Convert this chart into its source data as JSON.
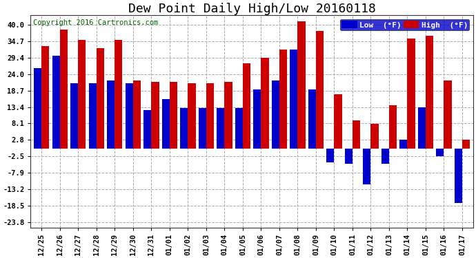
{
  "title": "Dew Point Daily High/Low 20160118",
  "copyright": "Copyright 2016 Cartronics.com",
  "legend_low": "Low  (°F)",
  "legend_high": "High  (°F)",
  "dates": [
    "12/25",
    "12/26",
    "12/27",
    "12/28",
    "12/29",
    "12/30",
    "12/31",
    "01/01",
    "01/02",
    "01/03",
    "01/04",
    "01/05",
    "01/06",
    "01/07",
    "01/08",
    "01/09",
    "01/10",
    "01/11",
    "01/12",
    "01/13",
    "01/14",
    "01/15",
    "01/16",
    "01/17"
  ],
  "low_vals": [
    26.0,
    30.0,
    21.0,
    21.0,
    22.0,
    21.0,
    12.5,
    16.0,
    13.0,
    13.0,
    13.0,
    13.0,
    19.0,
    22.0,
    32.0,
    19.0,
    -4.5,
    -5.0,
    -11.5,
    -5.0,
    2.8,
    13.4,
    -2.5,
    -17.5
  ],
  "high_vals": [
    33.0,
    38.5,
    35.0,
    32.5,
    35.0,
    22.0,
    21.5,
    21.5,
    21.0,
    21.0,
    21.5,
    27.5,
    29.4,
    32.0,
    41.0,
    38.0,
    17.5,
    9.0,
    8.0,
    14.0,
    35.5,
    36.5,
    22.0,
    2.8
  ],
  "yticks": [
    40.0,
    34.7,
    29.4,
    24.0,
    18.7,
    13.4,
    8.1,
    2.8,
    -2.5,
    -7.9,
    -13.2,
    -18.5,
    -23.8
  ],
  "ylim": [
    -25.5,
    43
  ],
  "bar_color_low": "#0000cc",
  "bar_color_high": "#cc0000",
  "bg_color": "#ffffff",
  "grid_color": "#aaaaaa",
  "title_fontsize": 13,
  "copyright_fontsize": 7.5
}
